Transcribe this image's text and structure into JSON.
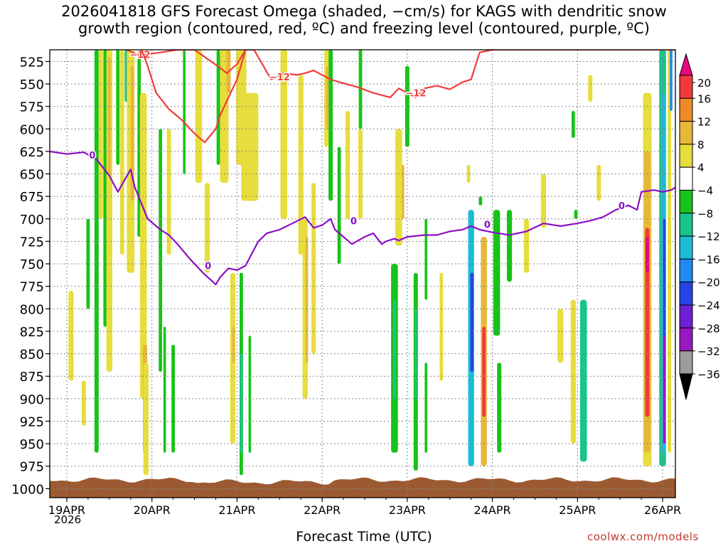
{
  "chart_data": {
    "type": "heatmap",
    "title_lines": [
      "2026041818 GFS Forecast Omega (shaded, −cm/s) for KAGS with dendritic snow",
      "growth region (contoured, red, ºC) and freezing level (contoured, purple, ºC)"
    ],
    "xlabel": "Forecast Time (UTC)",
    "year_label": "2026",
    "credit": "coolwx.com/models",
    "x_ticks": [
      "19APR",
      "20APR",
      "21APR",
      "22APR",
      "23APR",
      "24APR",
      "25APR",
      "26APR"
    ],
    "x_range_days": [
      -0.2,
      7.15
    ],
    "y_ticks": [
      525,
      550,
      575,
      600,
      625,
      650,
      675,
      700,
      725,
      750,
      775,
      800,
      825,
      850,
      875,
      900,
      925,
      950,
      975,
      1000
    ],
    "y_range_hpa": [
      512,
      1010
    ],
    "colorbar": {
      "labels": [
        "20",
        "16",
        "12",
        "8",
        "4",
        "−4",
        "−8",
        "−12",
        "−16",
        "−20",
        "−24",
        "−28",
        "−32",
        "−36"
      ],
      "colors": [
        "#e6087f",
        "#f23a3a",
        "#ee8a23",
        "#e8b73a",
        "#e7dd3c",
        "#ffffff",
        "#16c316",
        "#19c48f",
        "#1cbcd6",
        "#1f8af0",
        "#2644e6",
        "#6f1fd4",
        "#9a18c2",
        "#9c9c9c",
        "#000000"
      ]
    },
    "series": [
      {
        "name": "Freezing level (0 ºC)",
        "color": "#8c0ec4",
        "labels": [
          {
            "t": 0.3,
            "p": 629,
            "text": "0"
          },
          {
            "t": 1.66,
            "p": 752,
            "text": "0"
          },
          {
            "t": 3.37,
            "p": 702,
            "text": "0"
          },
          {
            "t": 4.94,
            "p": 706,
            "text": "0"
          },
          {
            "t": 6.52,
            "p": 685,
            "text": "0"
          }
        ],
        "t": [
          -0.2,
          0.0,
          0.2,
          0.35,
          0.5,
          0.6,
          0.75,
          0.8,
          0.95,
          1.1,
          1.2,
          1.3,
          1.45,
          1.6,
          1.75,
          1.8,
          1.9,
          2.0,
          2.1,
          2.25,
          2.35,
          2.5,
          2.65,
          2.8,
          2.9,
          3.0,
          3.1,
          3.15,
          3.25,
          3.35,
          3.5,
          3.6,
          3.7,
          3.75,
          3.85,
          3.9,
          4.0,
          4.2,
          4.35,
          4.5,
          4.65,
          4.75,
          4.85,
          5.0,
          5.2,
          5.4,
          5.6,
          5.8,
          6.0,
          6.15,
          6.3,
          6.45,
          6.6,
          6.7,
          6.75,
          6.9,
          7.0,
          7.1,
          7.15
        ],
        "values": [
          625,
          628,
          626,
          634,
          652,
          670,
          645,
          665,
          700,
          712,
          718,
          728,
          745,
          760,
          773,
          765,
          755,
          757,
          752,
          725,
          716,
          712,
          705,
          698,
          710,
          707,
          700,
          712,
          720,
          728,
          720,
          716,
          728,
          725,
          722,
          724,
          720,
          718,
          718,
          714,
          712,
          708,
          712,
          715,
          718,
          714,
          705,
          708,
          705,
          702,
          698,
          690,
          685,
          690,
          670,
          668,
          670,
          668,
          665
        ]
      },
      {
        "name": "Dendritic growth zone (−12 ºC)",
        "color": "#f03c3c",
        "labels": [
          {
            "t": 0.86,
            "p": 517,
            "text": "−12"
          },
          {
            "t": 2.5,
            "p": 542,
            "text": "−12"
          },
          {
            "t": 4.1,
            "p": 560,
            "text": "−12"
          }
        ],
        "t": [
          0.7,
          0.85,
          1.1,
          1.3,
          1.5,
          1.65,
          1.8,
          1.88,
          2.0,
          2.1,
          2.2,
          2.4,
          2.55,
          2.7,
          2.8,
          2.9,
          3.0,
          3.1,
          3.2,
          3.4,
          3.6,
          3.8,
          3.9,
          4.0,
          4.1,
          4.2,
          4.35,
          4.5,
          4.65,
          4.75,
          4.8,
          4.85,
          5.0,
          5.2,
          5.4,
          5.6,
          5.8,
          6.0,
          6.2,
          6.4,
          6.6,
          6.8,
          7.15
        ],
        "values": [
          512,
          518,
          515,
          512,
          512,
          522,
          532,
          538,
          528,
          512,
          512,
          545,
          538,
          540,
          538,
          535,
          540,
          545,
          548,
          553,
          560,
          565,
          555,
          560,
          565,
          555,
          552,
          556,
          548,
          545,
          530,
          515,
          512,
          512,
          512,
          512,
          512,
          512,
          512,
          512,
          512,
          512,
          512
        ]
      },
      {
        "name": "Dendritic growth zone lower branch (−12 ºC)",
        "color": "#f03c3c",
        "t": [
          0.88,
          0.95,
          1.05,
          1.2,
          1.35,
          1.5,
          1.62,
          1.75,
          1.8,
          1.9,
          2.0,
          2.1
        ],
        "values": [
          512,
          530,
          560,
          578,
          590,
          605,
          615,
          600,
          585,
          565,
          545,
          512
        ]
      }
    ],
    "omega_cells": [
      {
        "name": "sfc-19apr-green",
        "t": 0.25,
        "p_top": 700,
        "p_bottom": 800,
        "w": 0.04,
        "value": -6
      },
      {
        "name": "19apr-yellow-low",
        "t": 0.05,
        "p_top": 780,
        "p_bottom": 880,
        "w": 0.06,
        "value": 5
      },
      {
        "name": "19apr-column",
        "t": 0.35,
        "p_top": 512,
        "p_bottom": 960,
        "w": 0.05,
        "value": -5
      },
      {
        "name": "19apr-yellow-1",
        "t": 0.2,
        "p_top": 880,
        "p_bottom": 930,
        "w": 0.05,
        "value": 5
      },
      {
        "name": "19apr-column-2",
        "t": 0.4,
        "p_top": 512,
        "p_bottom": 700,
        "w": 0.05,
        "value": 5
      },
      {
        "name": "19apr-green-2",
        "t": 0.45,
        "p_top": 512,
        "p_bottom": 820,
        "w": 0.04,
        "value": -5
      },
      {
        "name": "19apr-yellow-2",
        "t": 0.5,
        "p_top": 512,
        "p_bottom": 870,
        "w": 0.07,
        "value": 6
      },
      {
        "name": "19apr-orange-2",
        "t": 0.5,
        "p_top": 520,
        "p_bottom": 650,
        "w": 0.03,
        "value": 9
      },
      {
        "name": "19apr-green-3",
        "t": 0.6,
        "p_top": 512,
        "p_bottom": 640,
        "w": 0.04,
        "value": -6
      },
      {
        "name": "19apr-yellow-3",
        "t": 0.65,
        "p_top": 512,
        "p_bottom": 740,
        "w": 0.05,
        "value": 5
      },
      {
        "name": "20apr-teal",
        "t": 0.7,
        "p_top": 512,
        "p_bottom": 570,
        "w": 0.04,
        "value": -10
      },
      {
        "name": "20apr-yellow-a",
        "t": 0.75,
        "p_top": 512,
        "p_bottom": 760,
        "w": 0.09,
        "value": 6
      },
      {
        "name": "20apr-orange-a",
        "t": 0.77,
        "p_top": 530,
        "p_bottom": 680,
        "w": 0.04,
        "value": 10
      },
      {
        "name": "20apr-green-a",
        "t": 0.85,
        "p_top": 512,
        "p_bottom": 720,
        "w": 0.04,
        "value": -6
      },
      {
        "name": "20apr-yellow-b",
        "t": 0.9,
        "p_top": 560,
        "p_bottom": 900,
        "w": 0.08,
        "value": 6
      },
      {
        "name": "20apr-orange-b",
        "t": 0.92,
        "p_top": 840,
        "p_bottom": 960,
        "w": 0.05,
        "value": 10
      },
      {
        "name": "20apr-yellow-c",
        "t": 0.93,
        "p_top": 860,
        "p_bottom": 985,
        "w": 0.06,
        "value": 6
      },
      {
        "name": "20apr-green-b",
        "t": 1.1,
        "p_top": 600,
        "p_bottom": 870,
        "w": 0.04,
        "value": -6
      },
      {
        "name": "20apr-green-c",
        "t": 1.25,
        "p_top": 840,
        "p_bottom": 960,
        "w": 0.04,
        "value": -6
      },
      {
        "name": "20apr-green-d",
        "t": 1.15,
        "p_top": 820,
        "p_bottom": 960,
        "w": 0.03,
        "value": -5
      },
      {
        "name": "20apr-yellow-d",
        "t": 1.2,
        "p_top": 600,
        "p_bottom": 740,
        "w": 0.05,
        "value": 5
      },
      {
        "name": "20apr-green-e",
        "t": 1.38,
        "p_top": 512,
        "p_bottom": 650,
        "w": 0.03,
        "value": -5
      },
      {
        "name": "20apr-yellow-e",
        "t": 1.55,
        "p_top": 512,
        "p_bottom": 660,
        "w": 0.08,
        "value": 5
      },
      {
        "name": "20apr-yellow-f",
        "t": 1.65,
        "p_top": 660,
        "p_bottom": 760,
        "w": 0.06,
        "value": 5
      },
      {
        "name": "20apr-green-f",
        "t": 1.78,
        "p_top": 512,
        "p_bottom": 640,
        "w": 0.04,
        "value": -5
      },
      {
        "name": "21apr-yellow-a",
        "t": 1.85,
        "p_top": 512,
        "p_bottom": 660,
        "w": 0.1,
        "value": 6
      },
      {
        "name": "21apr-orange-a",
        "t": 1.9,
        "p_top": 512,
        "p_bottom": 560,
        "w": 0.05,
        "value": 10
      },
      {
        "name": "21apr-yellow-b",
        "t": 2.05,
        "p_top": 512,
        "p_bottom": 640,
        "w": 0.12,
        "value": 5
      },
      {
        "name": "21apr-yellow-c",
        "t": 2.15,
        "p_top": 560,
        "p_bottom": 680,
        "w": 0.2,
        "value": 5
      },
      {
        "name": "21apr-yellow-d",
        "t": 1.95,
        "p_top": 760,
        "p_bottom": 950,
        "w": 0.06,
        "value": 5
      },
      {
        "name": "21apr-orange-d",
        "t": 1.96,
        "p_top": 820,
        "p_bottom": 860,
        "w": 0.03,
        "value": 9
      },
      {
        "name": "21apr-green-g",
        "t": 2.05,
        "p_top": 760,
        "p_bottom": 985,
        "w": 0.04,
        "value": -6
      },
      {
        "name": "21apr-teal-g",
        "t": 2.05,
        "p_top": 850,
        "p_bottom": 960,
        "w": 0.03,
        "value": -10
      },
      {
        "name": "21apr-green-h",
        "t": 2.15,
        "p_top": 830,
        "p_bottom": 960,
        "w": 0.03,
        "value": -5
      },
      {
        "name": "22apr-yellow-a",
        "t": 2.55,
        "p_top": 512,
        "p_bottom": 700,
        "w": 0.08,
        "value": 5
      },
      {
        "name": "22apr-yellow-b",
        "t": 2.75,
        "p_top": 540,
        "p_bottom": 740,
        "w": 0.06,
        "value": 5
      },
      {
        "name": "22apr-yellow-c",
        "t": 2.8,
        "p_top": 700,
        "p_bottom": 900,
        "w": 0.06,
        "value": 5
      },
      {
        "name": "22apr-orange-c",
        "t": 2.82,
        "p_top": 720,
        "p_bottom": 860,
        "w": 0.03,
        "value": 10
      },
      {
        "name": "22apr-yellow-d",
        "t": 2.9,
        "p_top": 660,
        "p_bottom": 850,
        "w": 0.05,
        "value": 5
      },
      {
        "name": "22apr-green-a",
        "t": 3.1,
        "p_top": 512,
        "p_bottom": 680,
        "w": 0.05,
        "value": -6
      },
      {
        "name": "22apr-green-b",
        "t": 3.2,
        "p_top": 620,
        "p_bottom": 750,
        "w": 0.04,
        "value": -5
      },
      {
        "name": "22apr-yellow-e",
        "t": 3.05,
        "p_top": 512,
        "p_bottom": 620,
        "w": 0.05,
        "value": 5
      },
      {
        "name": "22apr-orange-e",
        "t": 3.06,
        "p_top": 530,
        "p_bottom": 600,
        "w": 0.03,
        "value": 9
      },
      {
        "name": "22apr-yellow-f",
        "t": 3.3,
        "p_top": 580,
        "p_bottom": 700,
        "w": 0.05,
        "value": 5
      },
      {
        "name": "22apr-yellow-g",
        "t": 3.45,
        "p_top": 600,
        "p_bottom": 700,
        "w": 0.05,
        "value": 5
      },
      {
        "name": "22apr-green-c",
        "t": 3.45,
        "p_top": 512,
        "p_bottom": 600,
        "w": 0.04,
        "value": -5
      },
      {
        "name": "23apr-yellow-a",
        "t": 3.9,
        "p_top": 600,
        "p_bottom": 730,
        "w": 0.08,
        "value": 5
      },
      {
        "name": "23apr-orange-a",
        "t": 3.95,
        "p_top": 640,
        "p_bottom": 700,
        "w": 0.03,
        "value": 9
      },
      {
        "name": "23apr-green-a",
        "t": 3.85,
        "p_top": 750,
        "p_bottom": 960,
        "w": 0.08,
        "value": -6
      },
      {
        "name": "23apr-teal-a",
        "t": 3.85,
        "p_top": 790,
        "p_bottom": 900,
        "w": 0.03,
        "value": -10
      },
      {
        "name": "23apr-green-b",
        "t": 4.0,
        "p_top": 530,
        "p_bottom": 620,
        "w": 0.05,
        "value": -6
      },
      {
        "name": "23apr-green-c",
        "t": 4.1,
        "p_top": 760,
        "p_bottom": 980,
        "w": 0.05,
        "value": -6
      },
      {
        "name": "23apr-teal-c",
        "t": 4.1,
        "p_top": 800,
        "p_bottom": 900,
        "w": 0.02,
        "value": -10
      },
      {
        "name": "23apr-green-d",
        "t": 4.22,
        "p_top": 700,
        "p_bottom": 790,
        "w": 0.03,
        "value": -5
      },
      {
        "name": "23apr-yellow-b",
        "t": 4.4,
        "p_top": 760,
        "p_bottom": 880,
        "w": 0.04,
        "value": 5
      },
      {
        "name": "23apr-green-e",
        "t": 4.22,
        "p_top": 860,
        "p_bottom": 960,
        "w": 0.03,
        "value": -5
      },
      {
        "name": "24apr-cyan",
        "t": 4.75,
        "p_top": 690,
        "p_bottom": 975,
        "w": 0.07,
        "value": -14
      },
      {
        "name": "24apr-blue",
        "t": 4.76,
        "p_top": 760,
        "p_bottom": 870,
        "w": 0.04,
        "value": -22
      },
      {
        "name": "24apr-yellow",
        "t": 4.72,
        "p_top": 640,
        "p_bottom": 660,
        "w": 0.04,
        "value": 5
      },
      {
        "name": "24apr-green-a",
        "t": 4.86,
        "p_top": 675,
        "p_bottom": 685,
        "w": 0.04,
        "value": -6
      },
      {
        "name": "24apr-orange",
        "t": 4.9,
        "p_top": 720,
        "p_bottom": 975,
        "w": 0.07,
        "value": 10
      },
      {
        "name": "24apr-red",
        "t": 4.9,
        "p_top": 820,
        "p_bottom": 920,
        "w": 0.04,
        "value": 18
      },
      {
        "name": "24apr-green-b",
        "t": 5.05,
        "p_top": 690,
        "p_bottom": 830,
        "w": 0.08,
        "value": -6
      },
      {
        "name": "24apr-green-c",
        "t": 5.2,
        "p_top": 690,
        "p_bottom": 770,
        "w": 0.06,
        "value": -6
      },
      {
        "name": "24apr-green-d",
        "t": 5.08,
        "p_top": 860,
        "p_bottom": 960,
        "w": 0.05,
        "value": -6
      },
      {
        "name": "24apr-yellow-b",
        "t": 5.4,
        "p_top": 700,
        "p_bottom": 760,
        "w": 0.06,
        "value": 5
      },
      {
        "name": "25apr-yellow-a",
        "t": 5.6,
        "p_top": 650,
        "p_bottom": 710,
        "w": 0.06,
        "value": 5
      },
      {
        "name": "25apr-yellow-b",
        "t": 5.8,
        "p_top": 800,
        "p_bottom": 860,
        "w": 0.07,
        "value": 5
      },
      {
        "name": "25apr-cyan",
        "t": 6.07,
        "p_top": 790,
        "p_bottom": 970,
        "w": 0.08,
        "value": -10
      },
      {
        "name": "25apr-yellow-c",
        "t": 5.95,
        "p_top": 790,
        "p_bottom": 950,
        "w": 0.06,
        "value": 5
      },
      {
        "name": "25apr-green-a",
        "t": 5.98,
        "p_top": 690,
        "p_bottom": 700,
        "w": 0.04,
        "value": -6
      },
      {
        "name": "25apr-green-b",
        "t": 5.95,
        "p_top": 580,
        "p_bottom": 610,
        "w": 0.04,
        "value": -6
      },
      {
        "name": "25apr-yellow-d",
        "t": 6.25,
        "p_top": 640,
        "p_bottom": 680,
        "w": 0.05,
        "value": 5
      },
      {
        "name": "25apr-yellow-e",
        "t": 6.15,
        "p_top": 540,
        "p_bottom": 570,
        "w": 0.05,
        "value": 5
      },
      {
        "name": "26apr-yellow",
        "t": 6.82,
        "p_top": 560,
        "p_bottom": 975,
        "w": 0.1,
        "value": 6
      },
      {
        "name": "26apr-orange",
        "t": 6.82,
        "p_top": 625,
        "p_bottom": 960,
        "w": 0.08,
        "value": 11
      },
      {
        "name": "26apr-red",
        "t": 6.82,
        "p_top": 710,
        "p_bottom": 920,
        "w": 0.05,
        "value": 18
      },
      {
        "name": "26apr-magenta",
        "t": 6.82,
        "p_top": 720,
        "p_bottom": 760,
        "w": 0.04,
        "value": 21
      },
      {
        "name": "26apr-green",
        "t": 7.0,
        "p_top": 512,
        "p_bottom": 975,
        "w": 0.08,
        "value": -8
      },
      {
        "name": "26apr-teal",
        "t": 7.01,
        "p_top": 560,
        "p_bottom": 960,
        "w": 0.05,
        "value": -12
      },
      {
        "name": "26apr-blue",
        "t": 7.02,
        "p_top": 700,
        "p_bottom": 870,
        "w": 0.03,
        "value": -20
      },
      {
        "name": "26apr-purple",
        "t": 7.02,
        "p_top": 830,
        "p_bottom": 950,
        "w": 0.03,
        "value": -30
      },
      {
        "name": "26apr-yellow-b",
        "t": 7.08,
        "p_top": 512,
        "p_bottom": 960,
        "w": 0.04,
        "value": 5
      },
      {
        "name": "26apr-blue-top",
        "t": 7.1,
        "p_top": 512,
        "p_bottom": 580,
        "w": 0.03,
        "value": -18
      }
    ]
  }
}
